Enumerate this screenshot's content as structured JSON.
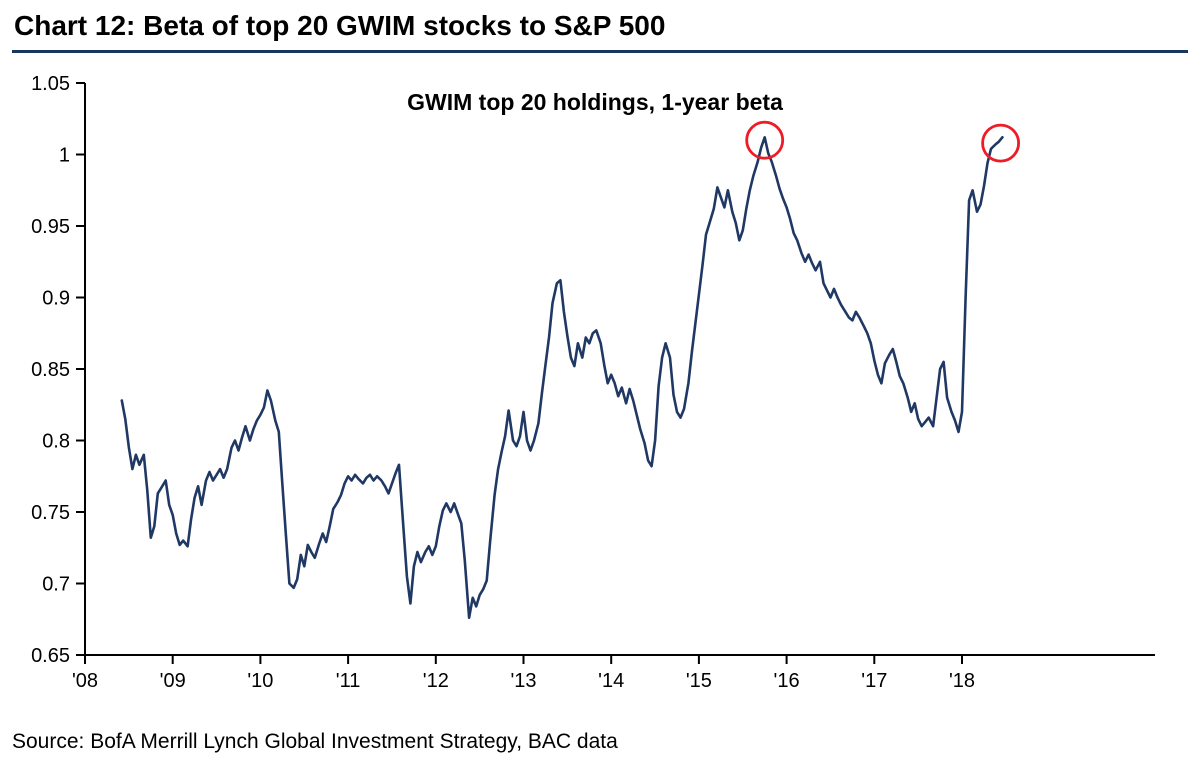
{
  "page": {
    "title": "Chart 12: Beta of top 20 GWIM stocks to S&P 500",
    "source": "Source: BofA Merrill Lynch Global Investment Strategy, BAC data"
  },
  "colors": {
    "line": "#203864",
    "rule": "#17375e",
    "axis": "#000000",
    "annotation": "#ee1c25"
  },
  "chart_data": {
    "type": "line",
    "title": "GWIM top 20  holdings,  1-year  beta",
    "xlabel": "",
    "ylabel": "",
    "xlim": [
      2008,
      2020.2
    ],
    "ylim": [
      0.65,
      1.05
    ],
    "grid": false,
    "legend": null,
    "y_ticks": [
      0.65,
      0.7,
      0.75,
      0.8,
      0.85,
      0.9,
      0.95,
      1,
      1.05
    ],
    "y_tick_labels": [
      "0.65",
      "0.7",
      "0.75",
      "0.8",
      "0.85",
      "0.9",
      "0.95",
      "1",
      "1.05"
    ],
    "x_ticks": [
      2008,
      2009,
      2010,
      2011,
      2012,
      2013,
      2014,
      2015,
      2016,
      2017,
      2018
    ],
    "x_tick_labels": [
      "'08",
      "'09",
      "'10",
      "'11",
      "'12",
      "'13",
      "'14",
      "'15",
      "'16",
      "'17",
      "'18"
    ],
    "series_name": "GWIM top 20 holdings, 1-year beta",
    "points": [
      [
        2008.42,
        0.828
      ],
      [
        2008.46,
        0.815
      ],
      [
        2008.5,
        0.795
      ],
      [
        2008.54,
        0.78
      ],
      [
        2008.58,
        0.79
      ],
      [
        2008.62,
        0.783
      ],
      [
        2008.67,
        0.79
      ],
      [
        2008.71,
        0.765
      ],
      [
        2008.75,
        0.732
      ],
      [
        2008.79,
        0.74
      ],
      [
        2008.83,
        0.763
      ],
      [
        2008.88,
        0.768
      ],
      [
        2008.92,
        0.772
      ],
      [
        2008.96,
        0.755
      ],
      [
        2009,
        0.748
      ],
      [
        2009.04,
        0.735
      ],
      [
        2009.08,
        0.727
      ],
      [
        2009.12,
        0.73
      ],
      [
        2009.17,
        0.726
      ],
      [
        2009.21,
        0.745
      ],
      [
        2009.25,
        0.76
      ],
      [
        2009.29,
        0.768
      ],
      [
        2009.33,
        0.755
      ],
      [
        2009.38,
        0.772
      ],
      [
        2009.42,
        0.778
      ],
      [
        2009.46,
        0.772
      ],
      [
        2009.5,
        0.776
      ],
      [
        2009.54,
        0.78
      ],
      [
        2009.58,
        0.774
      ],
      [
        2009.62,
        0.78
      ],
      [
        2009.67,
        0.795
      ],
      [
        2009.71,
        0.8
      ],
      [
        2009.75,
        0.793
      ],
      [
        2009.79,
        0.802
      ],
      [
        2009.83,
        0.81
      ],
      [
        2009.88,
        0.8
      ],
      [
        2009.92,
        0.808
      ],
      [
        2009.96,
        0.814
      ],
      [
        2010,
        0.818
      ],
      [
        2010.04,
        0.823
      ],
      [
        2010.08,
        0.835
      ],
      [
        2010.12,
        0.828
      ],
      [
        2010.17,
        0.814
      ],
      [
        2010.21,
        0.806
      ],
      [
        2010.25,
        0.77
      ],
      [
        2010.29,
        0.735
      ],
      [
        2010.33,
        0.7
      ],
      [
        2010.38,
        0.697
      ],
      [
        2010.42,
        0.703
      ],
      [
        2010.46,
        0.72
      ],
      [
        2010.5,
        0.712
      ],
      [
        2010.54,
        0.727
      ],
      [
        2010.58,
        0.722
      ],
      [
        2010.62,
        0.718
      ],
      [
        2010.67,
        0.728
      ],
      [
        2010.71,
        0.735
      ],
      [
        2010.75,
        0.729
      ],
      [
        2010.79,
        0.74
      ],
      [
        2010.83,
        0.752
      ],
      [
        2010.88,
        0.757
      ],
      [
        2010.92,
        0.762
      ],
      [
        2010.96,
        0.77
      ],
      [
        2011,
        0.775
      ],
      [
        2011.04,
        0.772
      ],
      [
        2011.08,
        0.776
      ],
      [
        2011.12,
        0.773
      ],
      [
        2011.17,
        0.77
      ],
      [
        2011.21,
        0.774
      ],
      [
        2011.25,
        0.776
      ],
      [
        2011.29,
        0.772
      ],
      [
        2011.33,
        0.775
      ],
      [
        2011.38,
        0.772
      ],
      [
        2011.42,
        0.768
      ],
      [
        2011.46,
        0.763
      ],
      [
        2011.5,
        0.77
      ],
      [
        2011.54,
        0.777
      ],
      [
        2011.58,
        0.783
      ],
      [
        2011.62,
        0.748
      ],
      [
        2011.67,
        0.705
      ],
      [
        2011.71,
        0.686
      ],
      [
        2011.75,
        0.712
      ],
      [
        2011.79,
        0.722
      ],
      [
        2011.83,
        0.715
      ],
      [
        2011.88,
        0.722
      ],
      [
        2011.92,
        0.726
      ],
      [
        2011.96,
        0.72
      ],
      [
        2012,
        0.726
      ],
      [
        2012.04,
        0.74
      ],
      [
        2012.08,
        0.751
      ],
      [
        2012.12,
        0.756
      ],
      [
        2012.17,
        0.75
      ],
      [
        2012.21,
        0.756
      ],
      [
        2012.25,
        0.749
      ],
      [
        2012.29,
        0.742
      ],
      [
        2012.33,
        0.716
      ],
      [
        2012.38,
        0.676
      ],
      [
        2012.42,
        0.69
      ],
      [
        2012.46,
        0.684
      ],
      [
        2012.5,
        0.692
      ],
      [
        2012.54,
        0.696
      ],
      [
        2012.58,
        0.702
      ],
      [
        2012.62,
        0.73
      ],
      [
        2012.67,
        0.762
      ],
      [
        2012.71,
        0.78
      ],
      [
        2012.75,
        0.792
      ],
      [
        2012.79,
        0.803
      ],
      [
        2012.83,
        0.821
      ],
      [
        2012.88,
        0.8
      ],
      [
        2012.92,
        0.796
      ],
      [
        2012.96,
        0.803
      ],
      [
        2013,
        0.82
      ],
      [
        2013.04,
        0.8
      ],
      [
        2013.08,
        0.793
      ],
      [
        2013.12,
        0.8
      ],
      [
        2013.17,
        0.812
      ],
      [
        2013.21,
        0.833
      ],
      [
        2013.25,
        0.853
      ],
      [
        2013.29,
        0.872
      ],
      [
        2013.33,
        0.896
      ],
      [
        2013.38,
        0.91
      ],
      [
        2013.42,
        0.912
      ],
      [
        2013.46,
        0.89
      ],
      [
        2013.5,
        0.873
      ],
      [
        2013.54,
        0.858
      ],
      [
        2013.58,
        0.852
      ],
      [
        2013.62,
        0.868
      ],
      [
        2013.67,
        0.858
      ],
      [
        2013.71,
        0.872
      ],
      [
        2013.75,
        0.868
      ],
      [
        2013.79,
        0.875
      ],
      [
        2013.83,
        0.877
      ],
      [
        2013.88,
        0.868
      ],
      [
        2013.92,
        0.853
      ],
      [
        2013.96,
        0.84
      ],
      [
        2014,
        0.846
      ],
      [
        2014.04,
        0.84
      ],
      [
        2014.08,
        0.831
      ],
      [
        2014.12,
        0.837
      ],
      [
        2014.17,
        0.826
      ],
      [
        2014.21,
        0.836
      ],
      [
        2014.25,
        0.828
      ],
      [
        2014.29,
        0.818
      ],
      [
        2014.33,
        0.808
      ],
      [
        2014.38,
        0.798
      ],
      [
        2014.42,
        0.786
      ],
      [
        2014.46,
        0.782
      ],
      [
        2014.5,
        0.8
      ],
      [
        2014.54,
        0.838
      ],
      [
        2014.58,
        0.858
      ],
      [
        2014.62,
        0.868
      ],
      [
        2014.67,
        0.858
      ],
      [
        2014.71,
        0.832
      ],
      [
        2014.75,
        0.82
      ],
      [
        2014.79,
        0.816
      ],
      [
        2014.83,
        0.822
      ],
      [
        2014.88,
        0.84
      ],
      [
        2014.92,
        0.862
      ],
      [
        2014.96,
        0.882
      ],
      [
        2015,
        0.902
      ],
      [
        2015.04,
        0.922
      ],
      [
        2015.08,
        0.944
      ],
      [
        2015.12,
        0.952
      ],
      [
        2015.17,
        0.962
      ],
      [
        2015.21,
        0.977
      ],
      [
        2015.25,
        0.97
      ],
      [
        2015.29,
        0.963
      ],
      [
        2015.33,
        0.975
      ],
      [
        2015.38,
        0.96
      ],
      [
        2015.42,
        0.952
      ],
      [
        2015.46,
        0.94
      ],
      [
        2015.5,
        0.947
      ],
      [
        2015.54,
        0.962
      ],
      [
        2015.58,
        0.975
      ],
      [
        2015.62,
        0.985
      ],
      [
        2015.67,
        0.995
      ],
      [
        2015.71,
        1.005
      ],
      [
        2015.75,
        1.012
      ],
      [
        2015.79,
        1.001
      ],
      [
        2015.83,
        0.995
      ],
      [
        2015.88,
        0.985
      ],
      [
        2015.92,
        0.976
      ],
      [
        2015.96,
        0.969
      ],
      [
        2016,
        0.963
      ],
      [
        2016.04,
        0.955
      ],
      [
        2016.08,
        0.945
      ],
      [
        2016.12,
        0.94
      ],
      [
        2016.17,
        0.931
      ],
      [
        2016.21,
        0.925
      ],
      [
        2016.25,
        0.93
      ],
      [
        2016.29,
        0.924
      ],
      [
        2016.33,
        0.919
      ],
      [
        2016.38,
        0.925
      ],
      [
        2016.42,
        0.91
      ],
      [
        2016.46,
        0.905
      ],
      [
        2016.5,
        0.9
      ],
      [
        2016.54,
        0.906
      ],
      [
        2016.58,
        0.9
      ],
      [
        2016.62,
        0.895
      ],
      [
        2016.67,
        0.89
      ],
      [
        2016.71,
        0.886
      ],
      [
        2016.75,
        0.884
      ],
      [
        2016.79,
        0.89
      ],
      [
        2016.83,
        0.886
      ],
      [
        2016.88,
        0.88
      ],
      [
        2016.92,
        0.875
      ],
      [
        2016.96,
        0.868
      ],
      [
        2017,
        0.856
      ],
      [
        2017.04,
        0.846
      ],
      [
        2017.08,
        0.84
      ],
      [
        2017.12,
        0.854
      ],
      [
        2017.17,
        0.86
      ],
      [
        2017.21,
        0.864
      ],
      [
        2017.25,
        0.855
      ],
      [
        2017.29,
        0.845
      ],
      [
        2017.33,
        0.84
      ],
      [
        2017.38,
        0.83
      ],
      [
        2017.42,
        0.82
      ],
      [
        2017.46,
        0.826
      ],
      [
        2017.5,
        0.815
      ],
      [
        2017.54,
        0.81
      ],
      [
        2017.58,
        0.813
      ],
      [
        2017.62,
        0.816
      ],
      [
        2017.67,
        0.81
      ],
      [
        2017.71,
        0.83
      ],
      [
        2017.75,
        0.85
      ],
      [
        2017.79,
        0.855
      ],
      [
        2017.83,
        0.83
      ],
      [
        2017.88,
        0.82
      ],
      [
        2017.92,
        0.814
      ],
      [
        2017.96,
        0.806
      ],
      [
        2018,
        0.82
      ],
      [
        2018.04,
        0.9
      ],
      [
        2018.08,
        0.968
      ],
      [
        2018.12,
        0.975
      ],
      [
        2018.17,
        0.96
      ],
      [
        2018.21,
        0.965
      ],
      [
        2018.25,
        0.978
      ],
      [
        2018.29,
        0.994
      ],
      [
        2018.33,
        1.004
      ],
      [
        2018.38,
        1.007
      ],
      [
        2018.42,
        1.009
      ],
      [
        2018.46,
        1.012
      ]
    ],
    "annotations": [
      {
        "type": "circle",
        "x": 2015.75,
        "y": 1.01,
        "label": "2015 beta peak highlighted"
      },
      {
        "type": "circle",
        "x": 2018.44,
        "y": 1.008,
        "label": "2018 beta peak highlighted"
      }
    ]
  }
}
